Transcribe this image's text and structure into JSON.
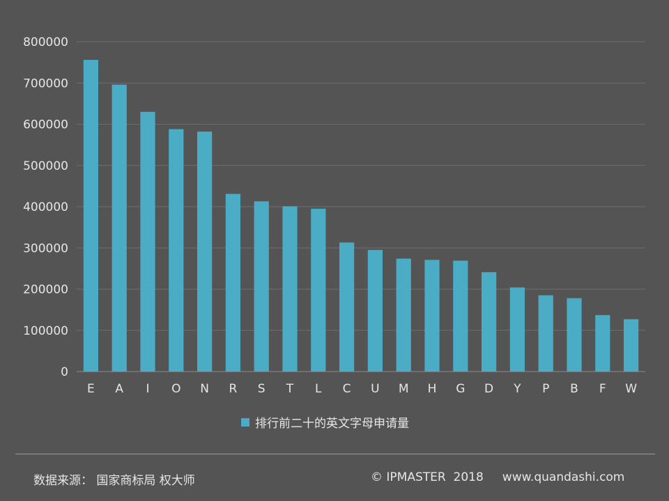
{
  "chart_data": {
    "type": "bar",
    "categories": [
      "E",
      "A",
      "I",
      "O",
      "N",
      "R",
      "S",
      "T",
      "L",
      "C",
      "U",
      "M",
      "H",
      "G",
      "D",
      "Y",
      "P",
      "B",
      "F",
      "W"
    ],
    "series": [
      {
        "name": "排行前二十的英文字母申请量",
        "values": [
          756000,
          696000,
          630000,
          588000,
          582000,
          431000,
          413000,
          401000,
          395000,
          313000,
          295000,
          274000,
          271000,
          269000,
          241000,
          204000,
          185000,
          178000,
          137000,
          127000
        ]
      }
    ],
    "y_ticks": [
      "0",
      "100000",
      "200000",
      "300000",
      "400000",
      "500000",
      "600000",
      "700000",
      "800000"
    ],
    "ylim": [
      0,
      800000
    ],
    "title": "",
    "xlabel": "",
    "ylabel": "",
    "grid": true,
    "legend_position": "bottom",
    "colors": {
      "bar": "#4bacc6",
      "grid": "#6e6e6e",
      "background": "#545454"
    }
  },
  "footer": {
    "source": "数据来源： 国家商标局  权大师",
    "copyright": "© IPMASTER  2018     www.quandashi.com"
  }
}
